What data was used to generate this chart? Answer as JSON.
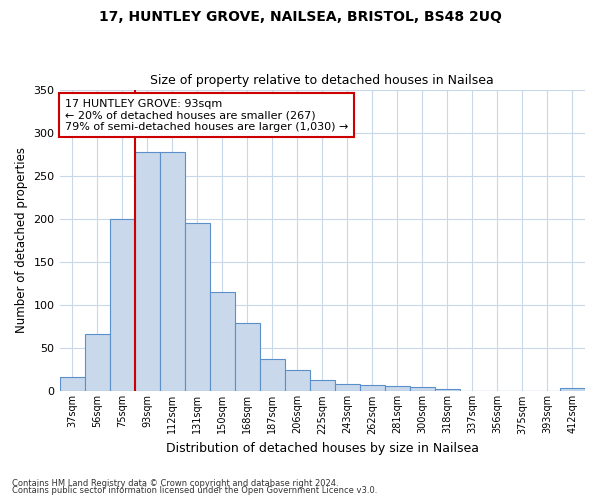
{
  "title": "17, HUNTLEY GROVE, NAILSEA, BRISTOL, BS48 2UQ",
  "subtitle": "Size of property relative to detached houses in Nailsea",
  "xlabel": "Distribution of detached houses by size in Nailsea",
  "ylabel": "Number of detached properties",
  "categories": [
    "37sqm",
    "56sqm",
    "75sqm",
    "93sqm",
    "112sqm",
    "131sqm",
    "150sqm",
    "168sqm",
    "187sqm",
    "206sqm",
    "225sqm",
    "243sqm",
    "262sqm",
    "281sqm",
    "300sqm",
    "318sqm",
    "337sqm",
    "356sqm",
    "375sqm",
    "393sqm",
    "412sqm"
  ],
  "values": [
    17,
    67,
    200,
    278,
    278,
    195,
    115,
    79,
    38,
    25,
    13,
    8,
    7,
    6,
    5,
    3,
    1,
    1,
    1,
    0,
    4
  ],
  "bar_color": "#c9d9eb",
  "bar_edge_color": "#5b8fc9",
  "highlight_color": "#cc0000",
  "annotation_line1": "17 HUNTLEY GROVE: 93sqm",
  "annotation_line2": "← 20% of detached houses are smaller (267)",
  "annotation_line3": "79% of semi-detached houses are larger (1,030) →",
  "annotation_box_color": "#ffffff",
  "annotation_box_edge": "#cc0000",
  "background_color": "#ffffff",
  "grid_color": "#c8d8e8",
  "footer1": "Contains HM Land Registry data © Crown copyright and database right 2024.",
  "footer2": "Contains public sector information licensed under the Open Government Licence v3.0.",
  "ylim": [
    0,
    350
  ],
  "yticks": [
    0,
    50,
    100,
    150,
    200,
    250,
    300,
    350
  ]
}
